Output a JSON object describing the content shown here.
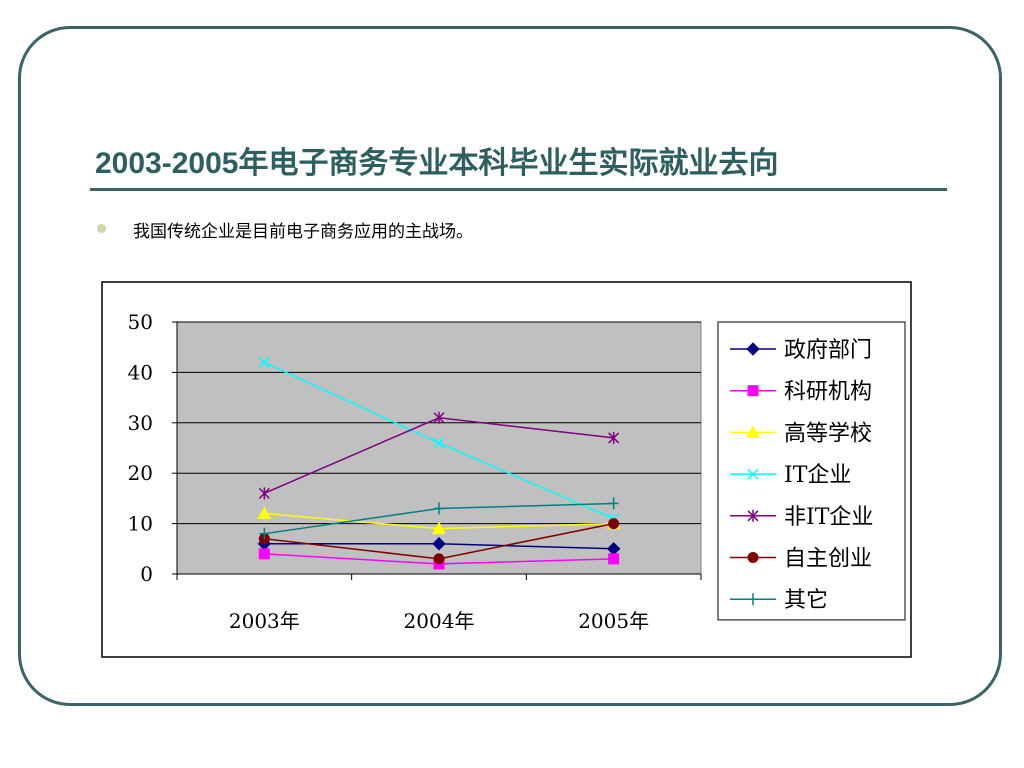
{
  "slide": {
    "title": "2003-2005年电子商务专业本科毕业生实际就业去向",
    "bullet": "我国传统企业是目前电子商务应用的主战场。"
  },
  "chart_data": {
    "type": "line",
    "categories": [
      "2003年",
      "2004年",
      "2005年"
    ],
    "ylim": [
      0,
      50
    ],
    "yticks": [
      0,
      10,
      20,
      30,
      40,
      50
    ],
    "grid": true,
    "legend_position": "right",
    "plot_background": "#c0c0c0",
    "series": [
      {
        "name": "政府部门",
        "values": [
          6,
          6,
          5
        ],
        "color": "#000080",
        "marker": "diamond"
      },
      {
        "name": "科研机构",
        "values": [
          4,
          2,
          3
        ],
        "color": "#ff00ff",
        "marker": "square"
      },
      {
        "name": "高等学校",
        "values": [
          12,
          9,
          10
        ],
        "color": "#ffff00",
        "marker": "triangle"
      },
      {
        "name": "IT企业",
        "values": [
          42,
          26,
          11
        ],
        "color": "#00ffff",
        "marker": "x"
      },
      {
        "name": "非IT企业",
        "values": [
          16,
          31,
          27
        ],
        "color": "#800080",
        "marker": "star"
      },
      {
        "name": "自主创业",
        "values": [
          7,
          3,
          10
        ],
        "color": "#800000",
        "marker": "circle"
      },
      {
        "name": "其它",
        "values": [
          8,
          13,
          14
        ],
        "color": "#008080",
        "marker": "plus"
      }
    ]
  }
}
